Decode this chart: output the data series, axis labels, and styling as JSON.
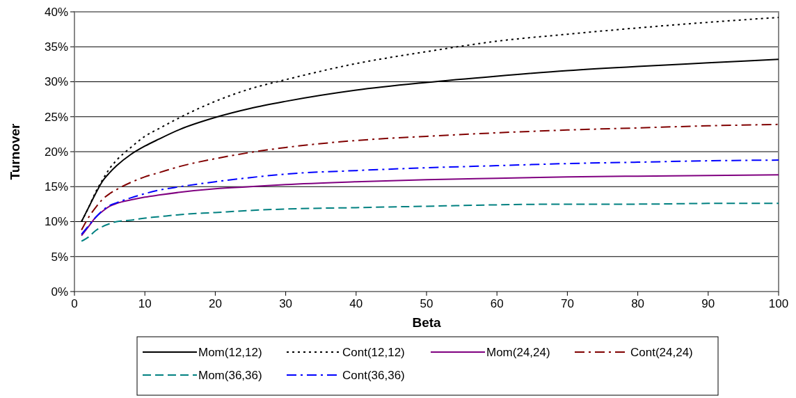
{
  "chart_data": {
    "type": "line",
    "xlabel": "Beta",
    "ylabel": "Turnover",
    "x": [
      1,
      2,
      3,
      4,
      5,
      6,
      8,
      10,
      12,
      15,
      20,
      25,
      30,
      40,
      50,
      60,
      70,
      80,
      90,
      100
    ],
    "xlim": [
      0,
      100
    ],
    "xticks": [
      0,
      10,
      20,
      30,
      40,
      50,
      60,
      70,
      80,
      90,
      100
    ],
    "ylim": [
      0,
      40
    ],
    "yticks": [
      {
        "value": 0,
        "label": "0%"
      },
      {
        "value": 5,
        "label": "5%"
      },
      {
        "value": 10,
        "label": "10%"
      },
      {
        "value": 15,
        "label": "15%"
      },
      {
        "value": 20,
        "label": "20%"
      },
      {
        "value": 25,
        "label": "25%"
      },
      {
        "value": 30,
        "label": "30%"
      },
      {
        "value": 35,
        "label": "35%"
      },
      {
        "value": 40,
        "label": "40%"
      }
    ],
    "grid": "y",
    "legend": "bottom",
    "marker": "none",
    "series": [
      {
        "name": "Mom(12,12)",
        "color": "#000000",
        "line_style": "solid",
        "values": [
          10.0,
          12.0,
          14.0,
          15.8,
          17.0,
          18.0,
          19.6,
          20.8,
          21.8,
          23.2,
          24.9,
          26.2,
          27.2,
          28.8,
          29.9,
          30.8,
          31.6,
          32.2,
          32.7,
          33.2
        ]
      },
      {
        "name": "Cont(12,12)",
        "color": "#000000",
        "line_style": "dotted",
        "values": [
          10.0,
          12.0,
          14.2,
          16.0,
          17.6,
          18.8,
          20.6,
          22.2,
          23.3,
          24.9,
          27.2,
          29.0,
          30.3,
          32.6,
          34.3,
          35.8,
          36.8,
          37.7,
          38.5,
          39.2
        ]
      },
      {
        "name": "Mom(24,24)",
        "color": "#800080",
        "line_style": "solid",
        "values": [
          8.0,
          9.3,
          10.6,
          11.5,
          12.2,
          12.6,
          13.1,
          13.5,
          13.8,
          14.2,
          14.7,
          15.0,
          15.3,
          15.7,
          16.0,
          16.2,
          16.4,
          16.5,
          16.6,
          16.7
        ]
      },
      {
        "name": "Cont(24,24)",
        "color": "#800000",
        "line_style": "dashdot",
        "values": [
          8.8,
          10.6,
          12.0,
          13.2,
          14.0,
          14.6,
          15.6,
          16.4,
          17.0,
          17.9,
          19.0,
          19.9,
          20.6,
          21.6,
          22.2,
          22.7,
          23.1,
          23.4,
          23.7,
          23.9
        ]
      },
      {
        "name": "Mom(36,36)",
        "color": "#008080",
        "line_style": "dashed",
        "values": [
          7.2,
          7.8,
          8.7,
          9.3,
          9.7,
          10.0,
          10.2,
          10.5,
          10.7,
          11.0,
          11.3,
          11.6,
          11.8,
          12.0,
          12.2,
          12.4,
          12.5,
          12.5,
          12.6,
          12.6
        ]
      },
      {
        "name": "Cont(36,36)",
        "color": "#0000ff",
        "line_style": "dashdot",
        "values": [
          8.2,
          9.4,
          10.6,
          11.6,
          12.3,
          12.7,
          13.4,
          14.0,
          14.5,
          15.0,
          15.7,
          16.3,
          16.8,
          17.3,
          17.7,
          18.0,
          18.3,
          18.5,
          18.7,
          18.8
        ]
      }
    ]
  }
}
